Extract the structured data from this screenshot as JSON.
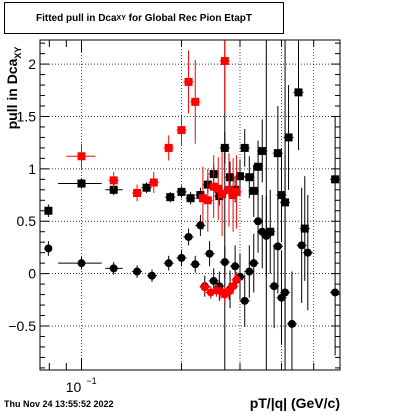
{
  "page": {
    "title_main": "Fitted pull in Dca",
    "title_sub": "XY",
    "title_tail": " for Global Rec Pion EtapT",
    "timestamp": "Thu Nov 24 13:55:52 2022"
  },
  "chart_data": {
    "type": "scatter",
    "title": "Fitted pull in Dca_XY for Global Rec Pion EtapT",
    "xlabel": "pT/|q| (GeV/c)",
    "ylabel_main": "pull in Dca",
    "ylabel_sub": "XY",
    "x_scale": "log",
    "xlim": [
      0.075,
      0.6
    ],
    "ylim": [
      -0.92,
      2.23
    ],
    "yticks": [
      -0.5,
      0,
      0.5,
      1,
      1.5,
      2
    ],
    "ytick_labels": [
      "−0.5",
      "0",
      "0.5",
      "1",
      "1.5",
      "2"
    ],
    "xtick_label": "10",
    "xtick_exp": "−1",
    "grid": true,
    "colors": {
      "black": "#000000",
      "red": "#ff0000",
      "grid": "#000000"
    },
    "series": [
      {
        "marker": "square",
        "color": "#000000",
        "points": [
          {
            "x": 0.0795,
            "y": 0.6,
            "ey": 0.06,
            "xlo": 0.0775,
            "xhi": 0.0815
          },
          {
            "x": 0.1,
            "y": 0.86,
            "ey": 0.05,
            "xlo": 0.085,
            "xhi": 0.115
          },
          {
            "x": 0.125,
            "y": 0.8,
            "ey": 0.05,
            "xlo": 0.118,
            "xhi": 0.133
          },
          {
            "x": 0.157,
            "y": 0.82,
            "ey": 0.05
          },
          {
            "x": 0.185,
            "y": 0.73,
            "ey": 0.05
          },
          {
            "x": 0.2,
            "y": 0.78,
            "ey": 0.06
          },
          {
            "x": 0.213,
            "y": 0.72,
            "ey": 0.06
          },
          {
            "x": 0.228,
            "y": 0.75,
            "ey": 0.07
          },
          {
            "x": 0.24,
            "y": 0.85,
            "ey": 0.08
          },
          {
            "x": 0.25,
            "y": 0.95,
            "ey": 0.09
          },
          {
            "x": 0.26,
            "y": 0.74,
            "ey": 0.09
          },
          {
            "x": 0.27,
            "y": 1.2,
            "ey": 0.15
          },
          {
            "x": 0.28,
            "y": 0.92,
            "ey": 0.15
          },
          {
            "x": 0.29,
            "y": 0.8,
            "ey": 0.12
          },
          {
            "x": 0.3,
            "y": 0.93,
            "ey": 0.16
          },
          {
            "x": 0.31,
            "y": 1.2,
            "ey": 0.18
          },
          {
            "x": 0.32,
            "y": 0.92,
            "ey": 0.2
          },
          {
            "x": 0.33,
            "y": 0.79,
            "ey": 0.25
          },
          {
            "x": 0.34,
            "y": 1.02,
            "ey": 0.25
          },
          {
            "x": 0.35,
            "y": 1.17,
            "ey": 0.3
          },
          {
            "x": 0.37,
            "y": 0.4,
            "ey": 0.4
          },
          {
            "x": 0.39,
            "y": 1.15,
            "ey": 0.45
          },
          {
            "x": 0.4,
            "y": 0.75,
            "ey": 0.45
          },
          {
            "x": 0.41,
            "y": 0.68,
            "ey": 0.45
          },
          {
            "x": 0.42,
            "y": 1.3,
            "ey": 0.5
          },
          {
            "x": 0.45,
            "y": 1.73,
            "ey": 0.55
          },
          {
            "x": 0.47,
            "y": 0.43,
            "ey": 0.5
          },
          {
            "x": 0.58,
            "y": 0.9,
            "ey": 0.6
          }
        ]
      },
      {
        "marker": "square",
        "color": "#ff0000",
        "points": [
          {
            "x": 0.1,
            "y": 1.12,
            "ey": 0.12,
            "xlo": 0.09,
            "xhi": 0.11
          },
          {
            "x": 0.125,
            "y": 0.89,
            "ey": 0.08
          },
          {
            "x": 0.147,
            "y": 0.77,
            "ey": 0.08
          },
          {
            "x": 0.165,
            "y": 0.87,
            "ey": 0.1
          },
          {
            "x": 0.183,
            "y": 1.2,
            "ey": 0.12
          },
          {
            "x": 0.2,
            "y": 1.37,
            "ey": 0.15
          },
          {
            "x": 0.21,
            "y": 1.83,
            "ey": 0.3
          },
          {
            "x": 0.22,
            "y": 1.64,
            "ey": 0.4
          },
          {
            "x": 0.232,
            "y": 0.72,
            "ey": 0.3
          },
          {
            "x": 0.24,
            "y": 0.7,
            "ey": 0.3
          },
          {
            "x": 0.25,
            "y": 0.83,
            "ey": 0.3
          },
          {
            "x": 0.258,
            "y": 0.81,
            "ey": 0.3
          },
          {
            "x": 0.265,
            "y": 0.76,
            "ey": 0.4
          },
          {
            "x": 0.27,
            "y": 2.03,
            "ey": 0.5
          },
          {
            "x": 0.278,
            "y": 0.8,
            "ey": 0.35
          },
          {
            "x": 0.286,
            "y": 0.75,
            "ey": 0.35
          },
          {
            "x": 0.293,
            "y": 0.78,
            "ey": 0.35
          }
        ]
      },
      {
        "marker": "circle",
        "color": "#000000",
        "points": [
          {
            "x": 0.0795,
            "y": 0.24,
            "ey": 0.07,
            "xlo": 0.0775,
            "xhi": 0.0815
          },
          {
            "x": 0.1,
            "y": 0.1,
            "ey": 0.06,
            "xlo": 0.085,
            "xhi": 0.115
          },
          {
            "x": 0.125,
            "y": 0.05,
            "ey": 0.06,
            "xlo": 0.118,
            "xhi": 0.133
          },
          {
            "x": 0.147,
            "y": 0.02,
            "ey": 0.06
          },
          {
            "x": 0.163,
            "y": -0.02,
            "ey": 0.06
          },
          {
            "x": 0.183,
            "y": 0.1,
            "ey": 0.07
          },
          {
            "x": 0.2,
            "y": 0.15,
            "ey": 0.08
          },
          {
            "x": 0.21,
            "y": 0.35,
            "ey": 0.08
          },
          {
            "x": 0.22,
            "y": 0.09,
            "ey": 0.08
          },
          {
            "x": 0.228,
            "y": 0.46,
            "ey": 0.1
          },
          {
            "x": 0.235,
            "y": -0.12,
            "ey": 0.1
          },
          {
            "x": 0.243,
            "y": 0.19,
            "ey": 0.12
          },
          {
            "x": 0.25,
            "y": -0.07,
            "ey": 0.12
          },
          {
            "x": 0.26,
            "y": -0.12,
            "ey": 0.14
          },
          {
            "x": 0.27,
            "y": 0.11,
            "ey": 0.15
          },
          {
            "x": 0.28,
            "y": -0.15,
            "ey": 0.18
          },
          {
            "x": 0.29,
            "y": 0.07,
            "ey": 0.2
          },
          {
            "x": 0.3,
            "y": -0.03,
            "ey": 0.22
          },
          {
            "x": 0.31,
            "y": -0.26,
            "ey": 0.25
          },
          {
            "x": 0.32,
            "y": 0.02,
            "ey": 0.25
          },
          {
            "x": 0.33,
            "y": 0.1,
            "ey": 0.28
          },
          {
            "x": 0.34,
            "y": 0.5,
            "ey": 0.3
          },
          {
            "x": 0.35,
            "y": 0.4,
            "ey": 0.35
          },
          {
            "x": 0.36,
            "y": 0.36,
            "ey": 0.38
          },
          {
            "x": 0.38,
            "y": -0.12,
            "ey": 0.4
          },
          {
            "x": 0.39,
            "y": 0.26,
            "ey": 0.45
          },
          {
            "x": 0.4,
            "y": -0.23,
            "ey": 0.45
          },
          {
            "x": 0.41,
            "y": -0.18,
            "ey": 0.5
          },
          {
            "x": 0.43,
            "y": -0.48,
            "ey": 0.5
          },
          {
            "x": 0.46,
            "y": 0.27,
            "ey": 0.55
          },
          {
            "x": 0.48,
            "y": 0.2,
            "ey": 0.55
          },
          {
            "x": 0.58,
            "y": -0.18,
            "ey": 0.6
          }
        ]
      },
      {
        "marker": "circle",
        "color": "#ff0000",
        "points": [
          {
            "x": 0.235,
            "y": -0.13,
            "ey": 0.06
          },
          {
            "x": 0.245,
            "y": -0.18,
            "ey": 0.06
          },
          {
            "x": 0.255,
            "y": -0.16,
            "ey": 0.06
          },
          {
            "x": 0.263,
            "y": -0.17,
            "ey": 0.07
          },
          {
            "x": 0.27,
            "y": -0.2,
            "ey": 0.08
          },
          {
            "x": 0.278,
            "y": -0.17,
            "ey": 0.08
          },
          {
            "x": 0.286,
            "y": -0.12,
            "ey": 0.08
          },
          {
            "x": 0.293,
            "y": -0.06,
            "ey": 0.08
          }
        ]
      }
    ],
    "vertical_lines": [
      0.27,
      0.36,
      0.41
    ]
  }
}
